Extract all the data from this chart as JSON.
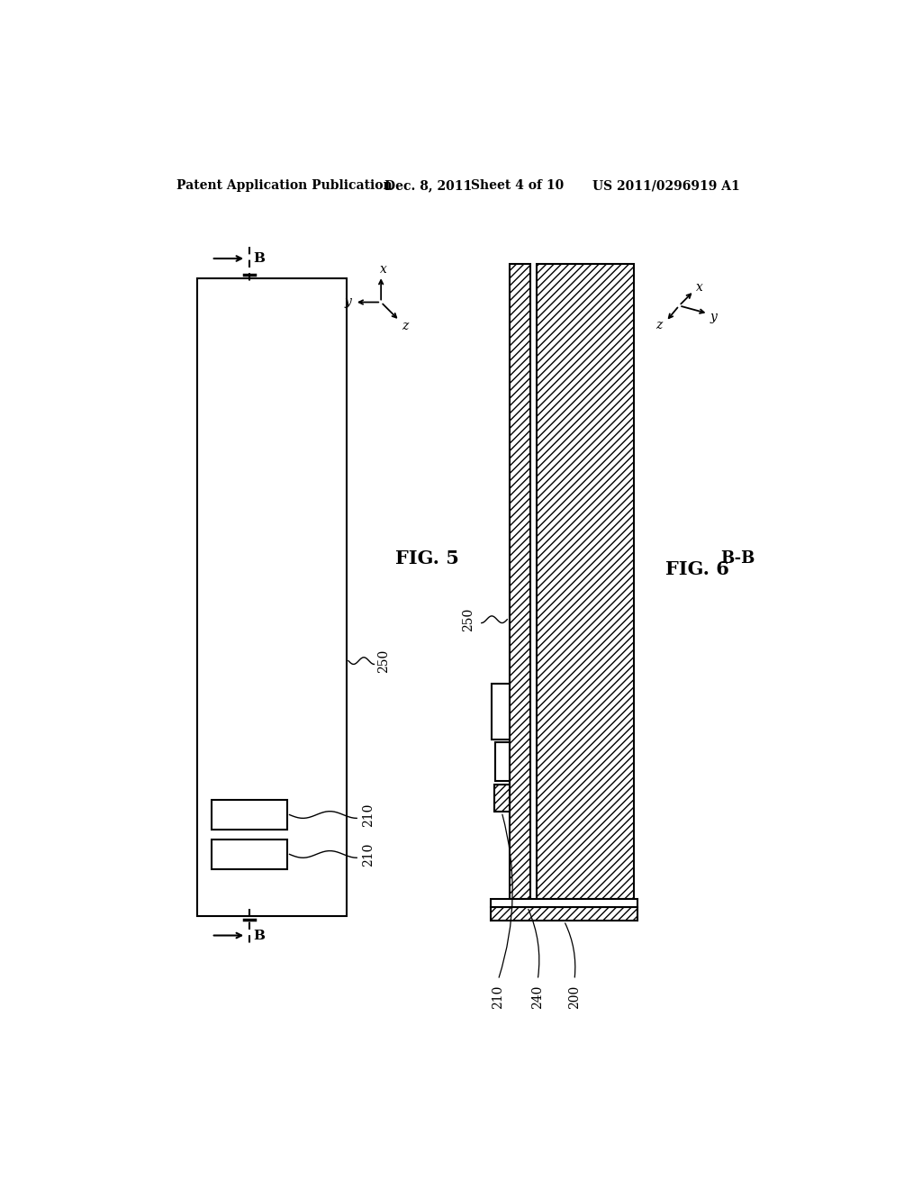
{
  "header_left": "Patent Application Publication",
  "header_date": "Dec. 8, 2011",
  "header_sheet": "Sheet 4 of 10",
  "header_patent": "US 2011/0296919 A1",
  "fig5_label": "FIG. 5",
  "fig6_label": "FIG. 6",
  "fig6_bb": "B-B",
  "bg": "#ffffff",
  "lc": "#000000"
}
